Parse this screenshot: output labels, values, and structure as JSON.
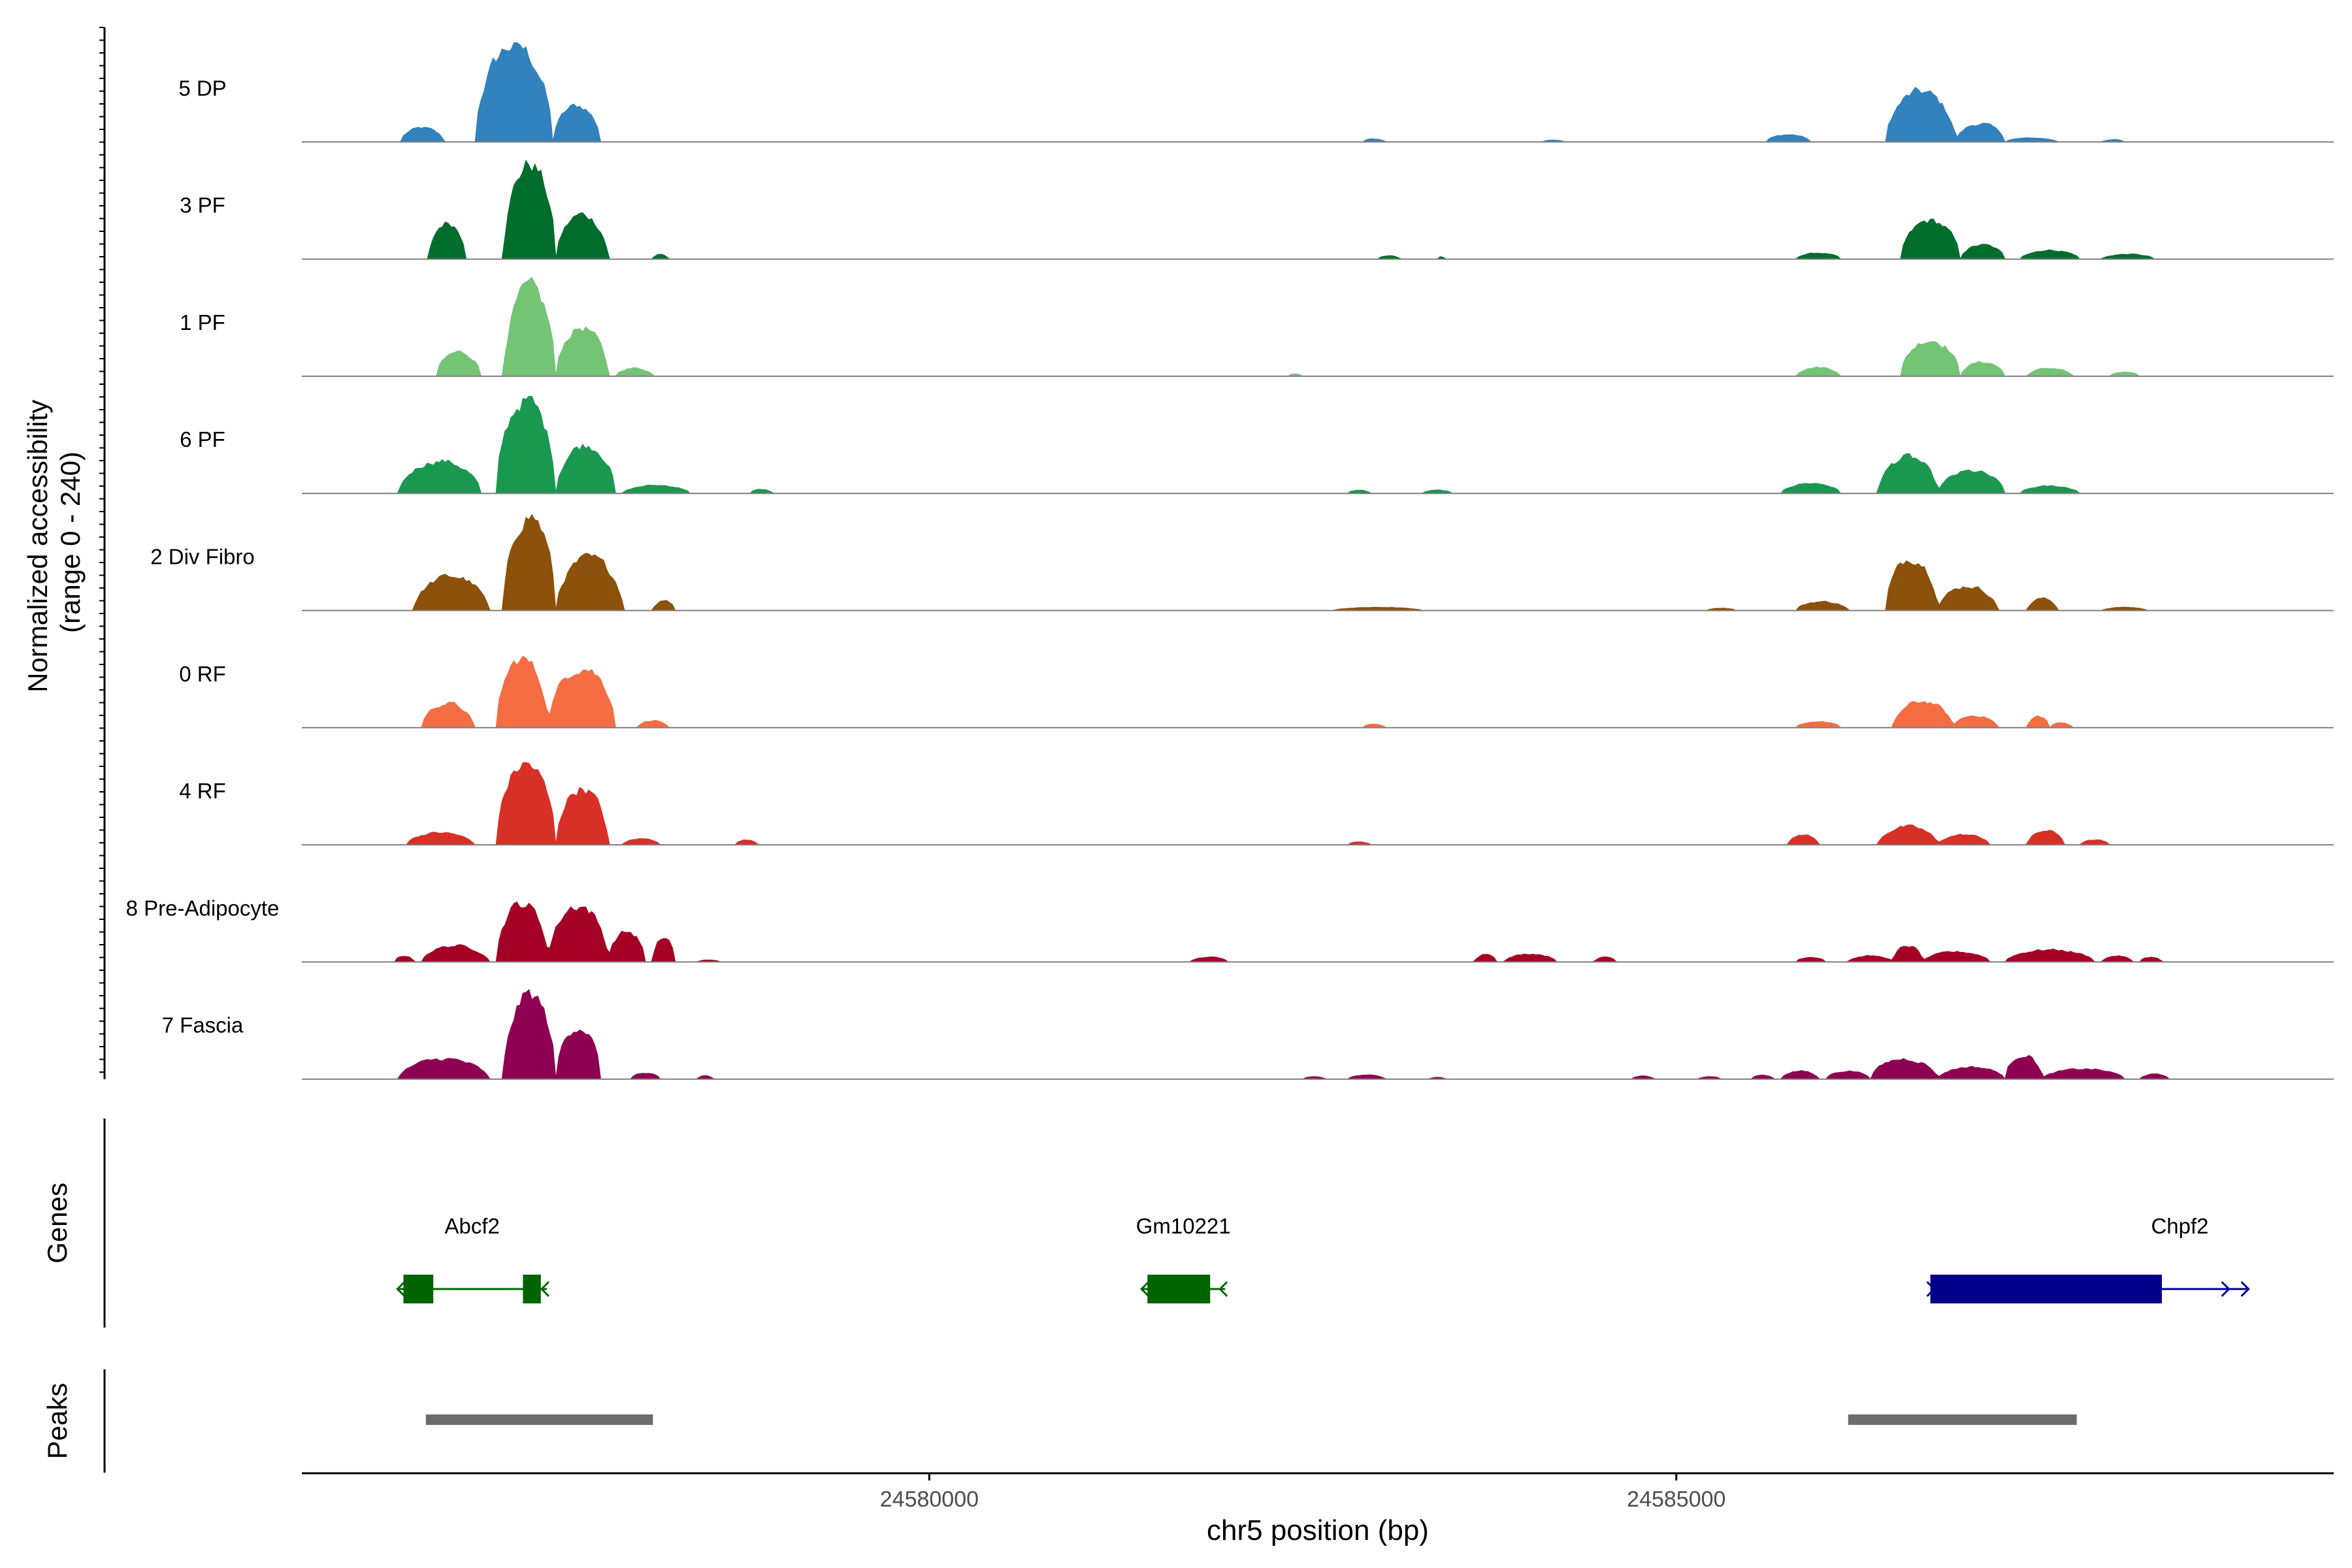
{
  "chart_data": {
    "type": "area",
    "chart_kind": "genome coverage track",
    "region": {
      "chrom": "chr5",
      "start": 24575800,
      "end": 24589400
    },
    "ylabel": "Normalized accessibility\n(range 0 - 240)",
    "ylabel_lines": [
      "Normalized accessibility",
      "(range 0 - 240)"
    ],
    "ylim": [
      0,
      240
    ],
    "xlabel": "chr5 position (bp)",
    "xticks": [
      24580000,
      24585000
    ],
    "xtick_labels": [
      "24580000",
      "24585000"
    ],
    "tracks": [
      {
        "name": "5 DP",
        "color": "#3182BD",
        "peaks": [
          [
            24576460,
            24576750,
            35
          ],
          [
            24576960,
            24577480,
            240
          ],
          [
            24577480,
            24577800,
            90
          ],
          [
            24582900,
            24583050,
            8
          ],
          [
            24584100,
            24584250,
            5
          ],
          [
            24585600,
            24585900,
            18
          ],
          [
            24586400,
            24586870,
            125
          ],
          [
            24586870,
            24587200,
            45
          ],
          [
            24587200,
            24587550,
            10
          ],
          [
            24587850,
            24588000,
            6
          ]
        ]
      },
      {
        "name": "3 PF",
        "color": "#006D2C",
        "peaks": [
          [
            24576650,
            24576900,
            90
          ],
          [
            24577150,
            24577500,
            235
          ],
          [
            24577500,
            24577850,
            110
          ],
          [
            24578150,
            24578250,
            12
          ],
          [
            24583000,
            24583150,
            8
          ],
          [
            24583400,
            24583450,
            6
          ],
          [
            24585800,
            24586100,
            15
          ],
          [
            24586500,
            24586900,
            95
          ],
          [
            24586900,
            24587200,
            35
          ],
          [
            24587300,
            24587700,
            22
          ],
          [
            24587850,
            24588200,
            12
          ]
        ]
      },
      {
        "name": "1 PF",
        "color": "#74C476",
        "peaks": [
          [
            24576700,
            24577000,
            60
          ],
          [
            24577150,
            24577500,
            220
          ],
          [
            24577500,
            24577850,
            120
          ],
          [
            24577900,
            24578150,
            20
          ],
          [
            24582400,
            24582500,
            6
          ],
          [
            24585800,
            24586100,
            22
          ],
          [
            24586500,
            24586900,
            90
          ],
          [
            24586900,
            24587200,
            35
          ],
          [
            24587350,
            24587650,
            20
          ],
          [
            24587900,
            24588100,
            10
          ]
        ]
      },
      {
        "name": "6 PF",
        "color": "#1B9850",
        "peaks": [
          [
            24576450,
            24577000,
            80
          ],
          [
            24577100,
            24577500,
            230
          ],
          [
            24577500,
            24577900,
            120
          ],
          [
            24577950,
            24578400,
            20
          ],
          [
            24578800,
            24578950,
            10
          ],
          [
            24582800,
            24582950,
            8
          ],
          [
            24583300,
            24583500,
            8
          ],
          [
            24585700,
            24586100,
            25
          ],
          [
            24586350,
            24586750,
            90
          ],
          [
            24586750,
            24587200,
            55
          ],
          [
            24587300,
            24587700,
            18
          ]
        ]
      },
      {
        "name": "2 Div Fibro",
        "color": "#8C510A",
        "peaks": [
          [
            24576550,
            24577050,
            85
          ],
          [
            24577150,
            24577500,
            235
          ],
          [
            24577500,
            24577950,
            130
          ],
          [
            24578150,
            24578300,
            25
          ],
          [
            24582700,
            24583300,
            8
          ],
          [
            24585200,
            24585400,
            6
          ],
          [
            24585800,
            24586150,
            22
          ],
          [
            24586400,
            24586750,
            130
          ],
          [
            24586750,
            24587150,
            60
          ],
          [
            24587350,
            24587550,
            30
          ],
          [
            24587850,
            24588150,
            8
          ]
        ]
      },
      {
        "name": "0 RF",
        "color": "#F46D43",
        "peaks": [
          [
            24576600,
            24576950,
            60
          ],
          [
            24577100,
            24577450,
            170
          ],
          [
            24577450,
            24577900,
            150
          ],
          [
            24578050,
            24578250,
            18
          ],
          [
            24582900,
            24583050,
            8
          ],
          [
            24585800,
            24586100,
            15
          ],
          [
            24586450,
            24586850,
            65
          ],
          [
            24586850,
            24587150,
            30
          ],
          [
            24587350,
            24587500,
            28
          ],
          [
            24587500,
            24587650,
            12
          ]
        ]
      },
      {
        "name": "4 RF",
        "color": "#D73027",
        "peaks": [
          [
            24576500,
            24576950,
            30
          ],
          [
            24577100,
            24577500,
            200
          ],
          [
            24577500,
            24577850,
            140
          ],
          [
            24577950,
            24578200,
            15
          ],
          [
            24578700,
            24578850,
            12
          ],
          [
            24582800,
            24582950,
            8
          ],
          [
            24585750,
            24585950,
            25
          ],
          [
            24586350,
            24586750,
            45
          ],
          [
            24586750,
            24587100,
            25
          ],
          [
            24587350,
            24587600,
            35
          ],
          [
            24587700,
            24587900,
            12
          ]
        ]
      },
      {
        "name": "8 Pre-Adipocyte",
        "color": "#A50026",
        "peaks": [
          [
            24576420,
            24576550,
            15
          ],
          [
            24576600,
            24577050,
            40
          ],
          [
            24577100,
            24577450,
            145
          ],
          [
            24577450,
            24577850,
            140
          ],
          [
            24577850,
            24578100,
            75
          ],
          [
            24578150,
            24578300,
            60
          ],
          [
            24578450,
            24578600,
            5
          ],
          [
            24581750,
            24582000,
            12
          ],
          [
            24583650,
            24583800,
            20
          ],
          [
            24583850,
            24584200,
            20
          ],
          [
            24584450,
            24584600,
            12
          ],
          [
            24585800,
            24586000,
            12
          ],
          [
            24586150,
            24586450,
            15
          ],
          [
            24586450,
            24586650,
            40
          ],
          [
            24586650,
            24587100,
            25
          ],
          [
            24587200,
            24587800,
            30
          ],
          [
            24587850,
            24588050,
            15
          ],
          [
            24588100,
            24588250,
            12
          ]
        ]
      },
      {
        "name": "7 Fascia",
        "color": "#8E0152",
        "peaks": [
          [
            24576450,
            24577050,
            50
          ],
          [
            24577150,
            24577500,
            210
          ],
          [
            24577500,
            24577800,
            130
          ],
          [
            24578000,
            24578200,
            15
          ],
          [
            24578450,
            24578550,
            8
          ],
          [
            24582500,
            24582650,
            6
          ],
          [
            24582800,
            24583050,
            10
          ],
          [
            24583350,
            24583450,
            5
          ],
          [
            24584700,
            24584850,
            8
          ],
          [
            24585150,
            24585300,
            6
          ],
          [
            24585500,
            24585650,
            10
          ],
          [
            24585700,
            24585950,
            20
          ],
          [
            24586000,
            24586300,
            20
          ],
          [
            24586300,
            24586750,
            50
          ],
          [
            24586750,
            24587200,
            30
          ],
          [
            24587200,
            24587450,
            60
          ],
          [
            24587450,
            24588000,
            25
          ],
          [
            24588100,
            24588300,
            12
          ]
        ]
      }
    ],
    "genes": [
      {
        "name": "Abcf2",
        "strand": "-",
        "color": "#006400",
        "start": 24576440,
        "end": 24577440,
        "exons": [
          [
            24576480,
            24576680
          ],
          [
            24577280,
            24577400
          ]
        ]
      },
      {
        "name": "Gm10221",
        "strand": "-",
        "color": "#006400",
        "start": 24581420,
        "end": 24581980,
        "exons": [
          [
            24581460,
            24581880
          ]
        ]
      },
      {
        "name": "Chpf2",
        "strand": "+",
        "color": "#00008B",
        "start": 24586700,
        "end": 24588830,
        "exons": [
          [
            24586700,
            24588250
          ]
        ]
      }
    ],
    "peaks_track": [
      [
        24576630,
        24578150
      ],
      [
        24586150,
        24587680
      ]
    ],
    "panel_labels": {
      "genes": "Genes",
      "peaks": "Peaks"
    }
  },
  "colors": {
    "axis": "#000000",
    "baseline": "#7f7f7f",
    "peak_bar": "#6b6b6b",
    "tick_text": "#4d4d4d"
  }
}
